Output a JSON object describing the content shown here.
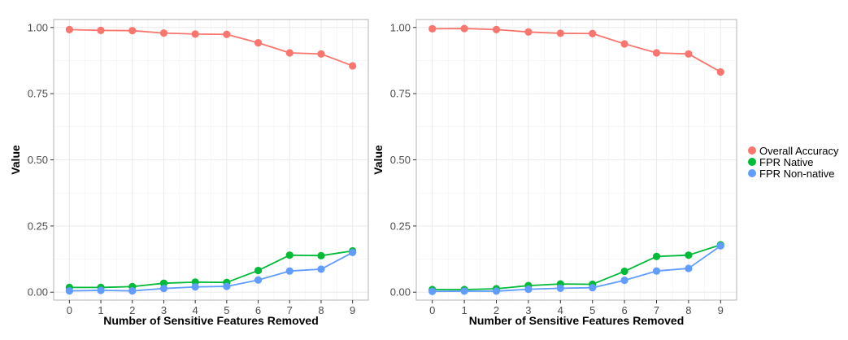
{
  "chart_data": [
    {
      "type": "line",
      "xlabel": "Number of Sensitive Features Removed",
      "ylabel": "Value",
      "x": [
        0,
        1,
        2,
        3,
        4,
        5,
        6,
        7,
        8,
        9
      ],
      "xlim": [
        -0.5,
        9.5
      ],
      "ylim": [
        -0.03,
        1.03
      ],
      "y_ticks": [
        "0.00",
        "0.25",
        "0.50",
        "0.75",
        "1.00"
      ],
      "x_ticks": [
        "0",
        "1",
        "2",
        "3",
        "4",
        "5",
        "6",
        "7",
        "8",
        "9"
      ],
      "grid": true,
      "series": [
        {
          "name": "Overall Accuracy",
          "color": "#F8766D",
          "values": [
            0.992,
            0.989,
            0.988,
            0.979,
            0.975,
            0.974,
            0.942,
            0.904,
            0.9,
            0.855
          ]
        },
        {
          "name": "FPR Native",
          "color": "#00BA38",
          "values": [
            0.018,
            0.018,
            0.021,
            0.034,
            0.038,
            0.037,
            0.082,
            0.14,
            0.138,
            0.156
          ]
        },
        {
          "name": "FPR Non-native",
          "color": "#619CFF",
          "values": [
            0.005,
            0.007,
            0.005,
            0.014,
            0.02,
            0.022,
            0.046,
            0.08,
            0.087,
            0.15
          ]
        }
      ]
    },
    {
      "type": "line",
      "xlabel": "Number of Sensitive Features Removed",
      "ylabel": "Value",
      "x": [
        0,
        1,
        2,
        3,
        4,
        5,
        6,
        7,
        8,
        9
      ],
      "xlim": [
        -0.5,
        9.5
      ],
      "ylim": [
        -0.03,
        1.03
      ],
      "y_ticks": [
        "0.00",
        "0.25",
        "0.50",
        "0.75",
        "1.00"
      ],
      "x_ticks": [
        "0",
        "1",
        "2",
        "3",
        "4",
        "5",
        "6",
        "7",
        "8",
        "9"
      ],
      "grid": true,
      "series": [
        {
          "name": "Overall Accuracy",
          "color": "#F8766D",
          "values": [
            0.995,
            0.996,
            0.992,
            0.983,
            0.978,
            0.977,
            0.938,
            0.904,
            0.9,
            0.832
          ]
        },
        {
          "name": "FPR Native",
          "color": "#00BA38",
          "values": [
            0.01,
            0.01,
            0.013,
            0.025,
            0.031,
            0.03,
            0.079,
            0.135,
            0.14,
            0.179
          ]
        },
        {
          "name": "FPR Non-native",
          "color": "#619CFF",
          "values": [
            0.003,
            0.004,
            0.004,
            0.011,
            0.015,
            0.017,
            0.045,
            0.08,
            0.09,
            0.175
          ]
        }
      ]
    }
  ],
  "legend": {
    "placement": "right",
    "entries": [
      {
        "label": "Overall Accuracy",
        "color": "#F8766D"
      },
      {
        "label": "FPR Native",
        "color": "#00BA38"
      },
      {
        "label": "FPR Non-native",
        "color": "#619CFF"
      }
    ]
  }
}
